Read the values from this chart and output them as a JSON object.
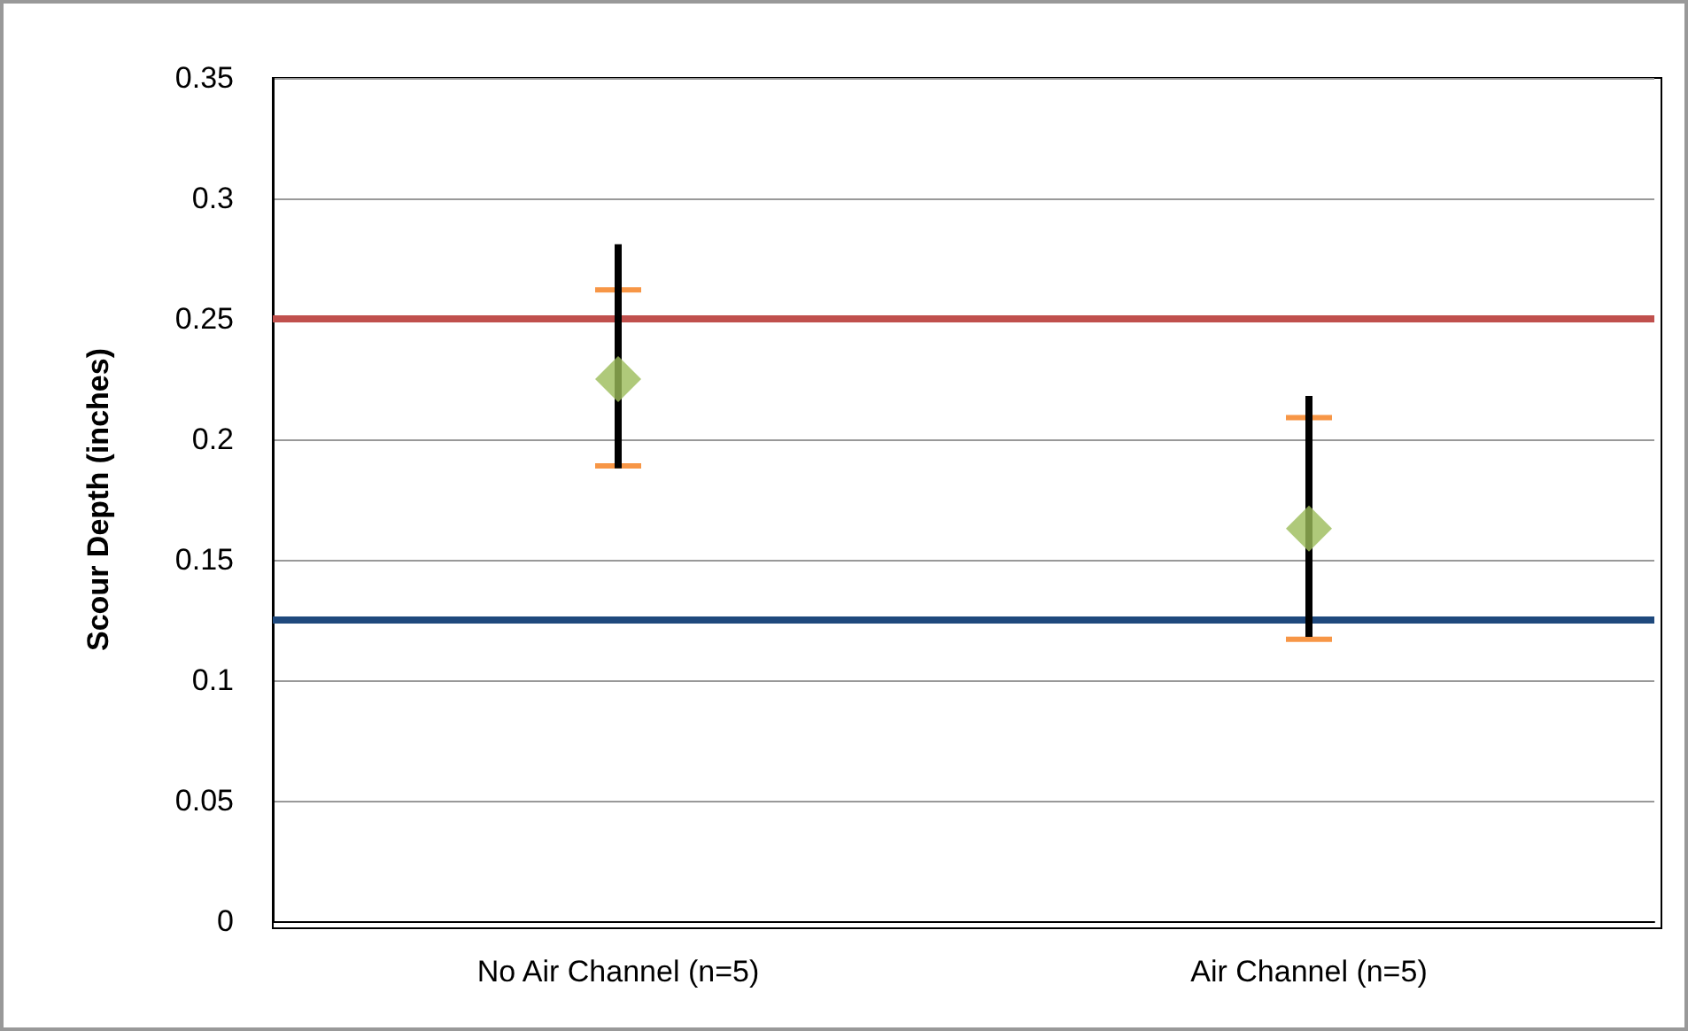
{
  "chart_data": {
    "type": "scatter",
    "ylabel": "Scour Depth (inches)",
    "categories": [
      "No Air Channel (n=5)",
      "Air Channel (n=5)"
    ],
    "series": [
      {
        "type": "bar",
        "color": "#000000",
        "base": [
          0.188,
          0.118
        ],
        "values": [
          0.093,
          0.1
        ]
      },
      {
        "color": "#9bbb59",
        "marker": "diamond",
        "values": [
          0.225,
          0.163
        ],
        "errors": [
          [
            0.189,
            0.262
          ],
          [
            0.117,
            0.209
          ]
        ]
      }
    ],
    "ylim": [
      0,
      0.35
    ],
    "yticks": [
      0,
      0.05,
      0.1,
      0.15,
      0.2,
      0.25,
      0.3,
      0.35
    ],
    "grid": "y",
    "ref_lines": [
      {
        "axis": "y",
        "value": 0.25,
        "color": "#c0504d"
      },
      {
        "axis": "y",
        "value": 0.125,
        "color": "#1f497d"
      }
    ]
  }
}
